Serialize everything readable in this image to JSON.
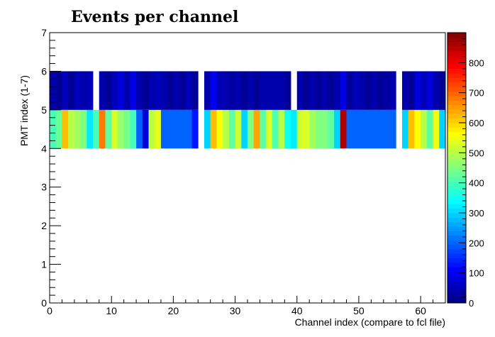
{
  "chart_data": {
    "type": "heatmap",
    "title": "Events per channel",
    "xlabel": "Channel index (compare to fcl file)",
    "ylabel": "PMT index (1-7)",
    "xlim": [
      0,
      64
    ],
    "ylim": [
      0,
      7
    ],
    "x_ticks": [
      "0",
      "10",
      "20",
      "30",
      "40",
      "50",
      "60"
    ],
    "y_ticks": [
      "0",
      "1",
      "2",
      "3",
      "4",
      "5",
      "6",
      "7"
    ],
    "colorbar": {
      "range": [
        0,
        900
      ],
      "ticks": [
        "0",
        "100",
        "200",
        "300",
        "400",
        "500",
        "600",
        "700",
        "800"
      ],
      "colormap": "jet"
    },
    "rows": [
      {
        "y_range": [
          4,
          5
        ],
        "values": [
          400,
          430,
          620,
          500,
          480,
          450,
          320,
          400,
          680,
          420,
          530,
          470,
          440,
          400,
          200,
          80,
          500,
          540,
          200,
          200,
          200,
          200,
          200,
          130,
          0,
          300,
          620,
          560,
          500,
          420,
          520,
          300,
          450,
          640,
          420,
          530,
          410,
          500,
          350,
          320,
          520,
          530,
          480,
          450,
          450,
          420,
          300,
          860,
          200,
          200,
          200,
          200,
          200,
          200,
          200,
          200,
          0,
          300,
          620,
          560,
          500,
          420,
          550,
          300
        ]
      },
      {
        "y_range": [
          5,
          6
        ],
        "values": [
          40,
          20,
          50,
          20,
          50,
          40,
          50,
          0,
          40,
          20,
          50,
          80,
          40,
          90,
          40,
          20,
          40,
          50,
          40,
          20,
          40,
          20,
          50,
          20,
          0,
          40,
          100,
          50,
          40,
          30,
          40,
          20,
          40,
          20,
          40,
          40,
          40,
          40,
          20,
          0,
          40,
          20,
          40,
          20,
          40,
          20,
          40,
          90,
          20,
          50,
          40,
          20,
          40,
          20,
          30,
          40,
          0,
          40,
          20,
          80,
          50,
          80,
          40,
          20
        ]
      }
    ]
  }
}
